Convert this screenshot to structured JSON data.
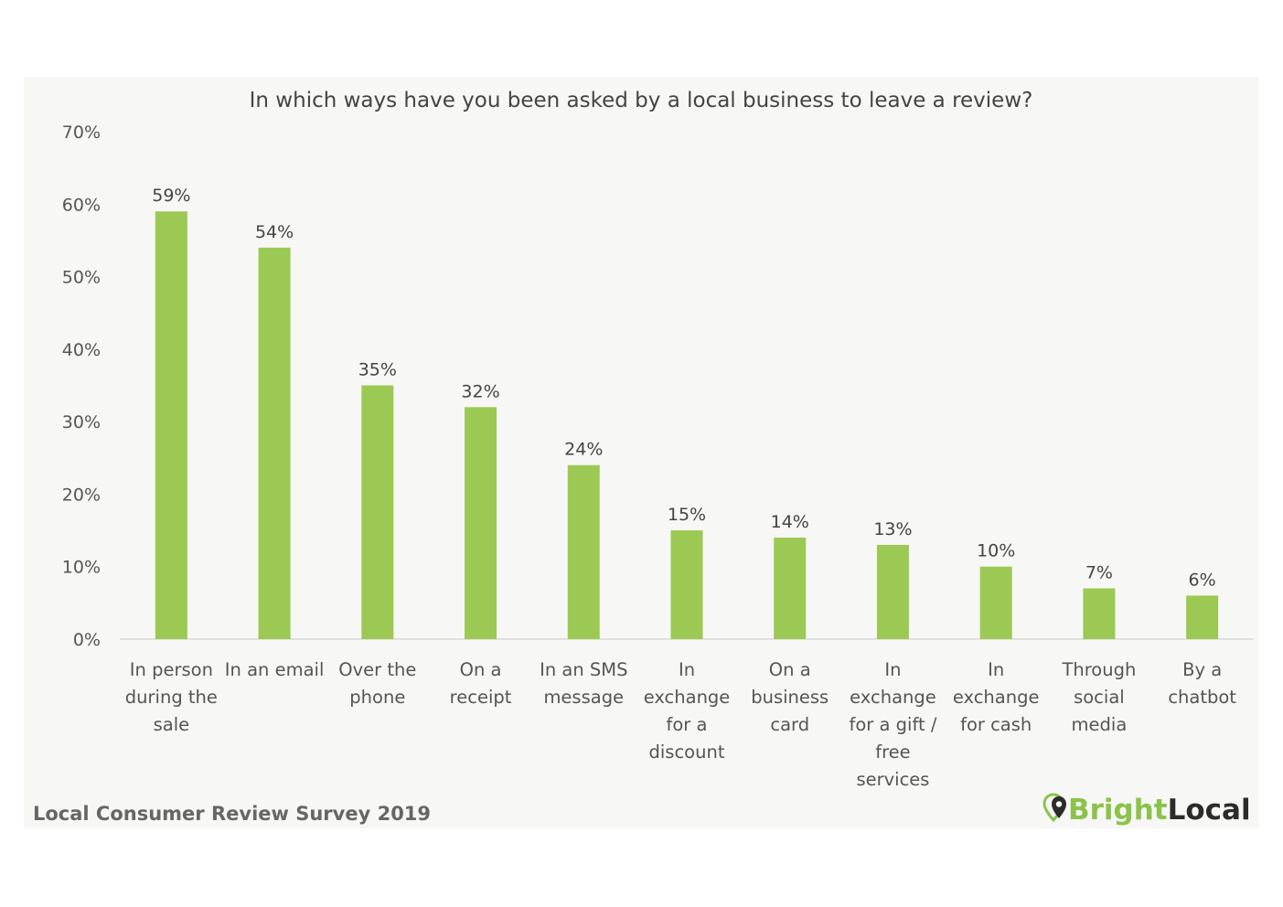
{
  "colors": {
    "bar": "#9bc953",
    "axis": "#d9d9d9",
    "brand_green": "#8bc34a",
    "brand_dark": "#2b2b2b"
  },
  "source_note": "Local Consumer Review Survey 2019",
  "brand": {
    "part1": "Bright",
    "part2": "Local",
    "icon": "map-pin-icon"
  },
  "chart_data": {
    "type": "bar",
    "title": "In which ways have you been asked by a local business to leave a review?",
    "xlabel": "",
    "ylabel": "",
    "ylim": [
      0,
      70
    ],
    "yticks": [
      0,
      10,
      20,
      30,
      40,
      50,
      60,
      70
    ],
    "ytick_labels": [
      "0%",
      "10%",
      "20%",
      "30%",
      "40%",
      "50%",
      "60%",
      "70%"
    ],
    "grid": false,
    "legend": "none",
    "categories": [
      [
        "In person",
        "during the",
        "sale"
      ],
      [
        "In an email"
      ],
      [
        "Over the",
        "phone"
      ],
      [
        "On a",
        "receipt"
      ],
      [
        "In an SMS",
        "message"
      ],
      [
        "In",
        "exchange",
        "for a",
        "discount"
      ],
      [
        "On a",
        "business",
        "card"
      ],
      [
        "In",
        "exchange",
        "for a gift /",
        "free",
        "services"
      ],
      [
        "In",
        "exchange",
        "for cash"
      ],
      [
        "Through",
        "social",
        "media"
      ],
      [
        "By a",
        "chatbot"
      ]
    ],
    "values": [
      59,
      54,
      35,
      32,
      24,
      15,
      14,
      13,
      10,
      7,
      6
    ],
    "value_labels": [
      "59%",
      "54%",
      "35%",
      "32%",
      "24%",
      "15%",
      "14%",
      "13%",
      "10%",
      "7%",
      "6%"
    ]
  }
}
